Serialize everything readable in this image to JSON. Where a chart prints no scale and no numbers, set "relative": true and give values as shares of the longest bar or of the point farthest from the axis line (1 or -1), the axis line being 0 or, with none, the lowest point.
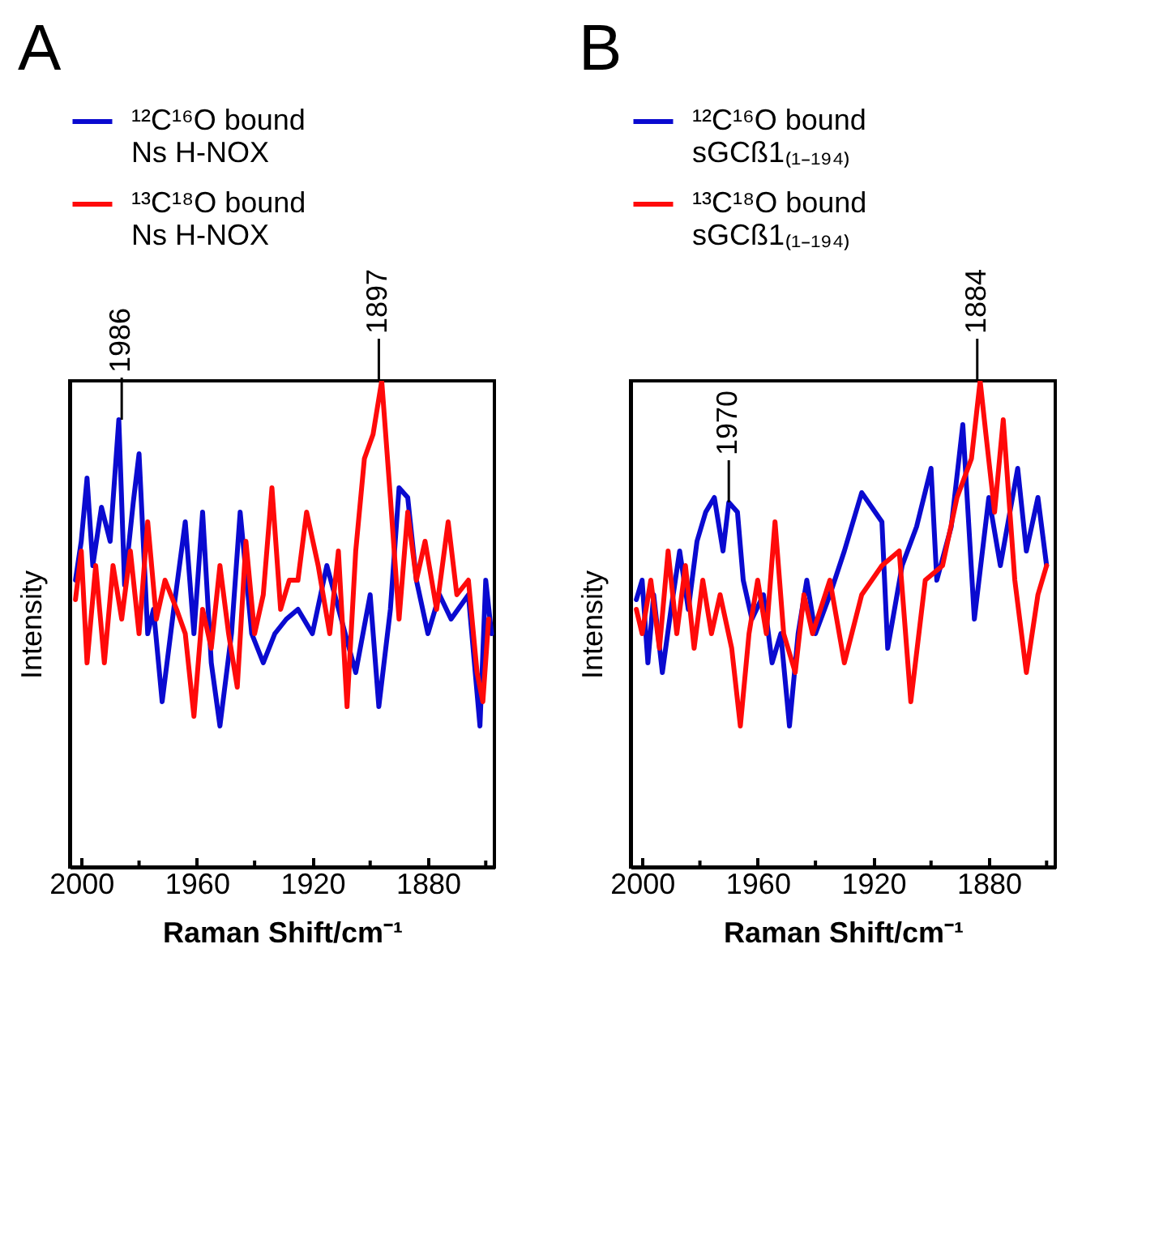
{
  "chart_data": [
    {
      "type": "line",
      "title": "A",
      "xlabel": "Raman Shift/cm⁻¹",
      "ylabel": "Intensity",
      "relative": true,
      "legend": "top",
      "xlim": [
        2004,
        1857
      ],
      "xticks": [
        2000,
        {
          "value": 1980,
          "label": null
        },
        1960,
        {
          "value": 1940,
          "label": null
        },
        1920,
        {
          "value": 1900,
          "label": null
        },
        1880,
        {
          "value": 1860,
          "label": null
        }
      ],
      "annotations": [
        {
          "text": "1986",
          "x": 1986,
          "y": 0.92
        },
        {
          "text": "1897",
          "x": 1897,
          "y": 1.0
        }
      ],
      "series": [
        {
          "name": "¹²C¹⁶O bound\nNs H-NOX",
          "color": "#0a0ad0",
          "x": [
            2002,
            2000,
            1998,
            1996,
            1993,
            1990,
            1987,
            1985,
            1982,
            1980,
            1977,
            1975,
            1972,
            1968,
            1964,
            1961,
            1958,
            1955,
            1952,
            1948,
            1945,
            1941,
            1937,
            1933,
            1929,
            1925,
            1920,
            1915,
            1910,
            1905,
            1900,
            1897,
            1893,
            1890,
            1887,
            1884,
            1880,
            1876,
            1872,
            1866,
            1862,
            1860,
            1858
          ],
          "values": [
            0.59,
            0.67,
            0.8,
            0.62,
            0.74,
            0.67,
            0.92,
            0.58,
            0.75,
            0.85,
            0.48,
            0.53,
            0.34,
            0.53,
            0.71,
            0.48,
            0.73,
            0.42,
            0.29,
            0.48,
            0.73,
            0.48,
            0.42,
            0.48,
            0.51,
            0.53,
            0.48,
            0.62,
            0.51,
            0.4,
            0.56,
            0.33,
            0.53,
            0.78,
            0.76,
            0.59,
            0.48,
            0.56,
            0.51,
            0.56,
            0.29,
            0.59,
            0.48
          ]
        },
        {
          "name": "¹³C¹⁸O bound\nNs H-NOX",
          "color": "#ff0a0a",
          "x": [
            2002,
            2000,
            1998,
            1995,
            1992,
            1989,
            1986,
            1983,
            1980,
            1977,
            1974,
            1971,
            1967,
            1964,
            1961,
            1958,
            1955,
            1952,
            1949,
            1946,
            1943,
            1940,
            1937,
            1934,
            1931,
            1928,
            1925,
            1922,
            1918,
            1914,
            1911,
            1908,
            1905,
            1902,
            1899,
            1896,
            1893,
            1890,
            1887,
            1884,
            1881,
            1877,
            1873,
            1870,
            1866,
            1863,
            1861,
            1859
          ],
          "values": [
            0.55,
            0.65,
            0.42,
            0.62,
            0.42,
            0.62,
            0.51,
            0.65,
            0.48,
            0.71,
            0.51,
            0.59,
            0.53,
            0.48,
            0.31,
            0.53,
            0.45,
            0.62,
            0.48,
            0.37,
            0.67,
            0.48,
            0.56,
            0.78,
            0.53,
            0.59,
            0.59,
            0.73,
            0.62,
            0.48,
            0.65,
            0.33,
            0.65,
            0.84,
            0.89,
            1.0,
            0.76,
            0.51,
            0.73,
            0.59,
            0.67,
            0.53,
            0.71,
            0.56,
            0.59,
            0.4,
            0.34,
            0.51
          ]
        }
      ]
    },
    {
      "type": "line",
      "title": "B",
      "xlabel": "Raman Shift/cm⁻¹",
      "ylabel": "Intensity",
      "relative": true,
      "legend": "top",
      "xlim": [
        2004,
        1857
      ],
      "xticks": [
        2000,
        {
          "value": 1980,
          "label": null
        },
        1960,
        {
          "value": 1940,
          "label": null
        },
        1920,
        {
          "value": 1900,
          "label": null
        },
        1880,
        {
          "value": 1860,
          "label": null
        }
      ],
      "annotations": [
        {
          "text": "1970",
          "x": 1970,
          "y": 0.75
        },
        {
          "text": "1884",
          "x": 1884,
          "y": 1.0
        }
      ],
      "series": [
        {
          "name": "¹²C¹⁶O bound\nsGCß1₍₁₋₁₉₄₎",
          "color": "#0a0ad0",
          "x": [
            2002,
            2000,
            1998,
            1996,
            1993,
            1990,
            1987,
            1984,
            1981,
            1978,
            1975,
            1972,
            1970,
            1967,
            1965,
            1962,
            1958,
            1955,
            1952,
            1949,
            1946,
            1943,
            1940,
            1935,
            1930,
            1924,
            1917,
            1915,
            1910,
            1905,
            1900,
            1898,
            1893,
            1889,
            1885,
            1880,
            1876,
            1870,
            1867,
            1863,
            1860
          ],
          "values": [
            0.55,
            0.59,
            0.42,
            0.56,
            0.4,
            0.53,
            0.65,
            0.53,
            0.67,
            0.73,
            0.76,
            0.65,
            0.75,
            0.73,
            0.59,
            0.51,
            0.56,
            0.42,
            0.48,
            0.29,
            0.48,
            0.59,
            0.48,
            0.56,
            0.65,
            0.77,
            0.71,
            0.45,
            0.62,
            0.7,
            0.82,
            0.59,
            0.7,
            0.91,
            0.51,
            0.76,
            0.62,
            0.82,
            0.65,
            0.76,
            0.62
          ]
        },
        {
          "name": "¹³C¹⁸O bound\nsGCß1₍₁₋₁₉₄₎",
          "color": "#ff0a0a",
          "x": [
            2002,
            2000,
            1997,
            1994,
            1991,
            1988,
            1985,
            1982,
            1979,
            1976,
            1973,
            1969,
            1966,
            1963,
            1960,
            1957,
            1954,
            1951,
            1947,
            1944,
            1941,
            1935,
            1930,
            1924,
            1917,
            1911,
            1907,
            1902,
            1896,
            1891,
            1886,
            1883,
            1881,
            1878,
            1875,
            1871,
            1867,
            1863,
            1860
          ],
          "values": [
            0.53,
            0.48,
            0.59,
            0.45,
            0.65,
            0.48,
            0.62,
            0.45,
            0.59,
            0.48,
            0.56,
            0.45,
            0.29,
            0.48,
            0.59,
            0.48,
            0.71,
            0.48,
            0.4,
            0.56,
            0.48,
            0.59,
            0.42,
            0.56,
            0.62,
            0.65,
            0.34,
            0.59,
            0.62,
            0.76,
            0.84,
            1.0,
            0.89,
            0.73,
            0.92,
            0.59,
            0.4,
            0.56,
            0.62
          ]
        }
      ]
    }
  ]
}
